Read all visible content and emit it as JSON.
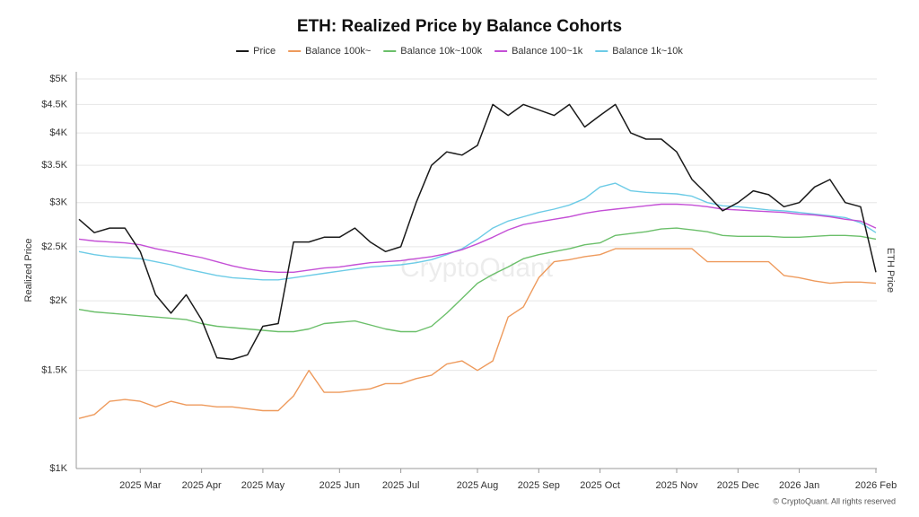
{
  "chart_data": {
    "type": "line",
    "title": "ETH: Realized Price by Balance Cohorts",
    "y_label": "Realized Price",
    "y2_label": "ETH Price",
    "watermark": "CryptoQuant",
    "credit": "© CryptoQuant. All rights reserved",
    "y_scale": "log",
    "grid": true,
    "legend": "top",
    "ylim": [
      1000,
      5150
    ],
    "yticks": [
      {
        "value": 1000,
        "label": "$1K"
      },
      {
        "value": 1500,
        "label": "$1.5K"
      },
      {
        "value": 2000,
        "label": "$2K"
      },
      {
        "value": 2500,
        "label": "$2.5K"
      },
      {
        "value": 3000,
        "label": "$3K"
      },
      {
        "value": 3500,
        "label": "$3.5K"
      },
      {
        "value": 4000,
        "label": "$4K"
      },
      {
        "value": 4500,
        "label": "$4.5K"
      },
      {
        "value": 5000,
        "label": "$5K"
      }
    ],
    "categories": [
      null,
      null,
      null,
      null,
      "2025 Mar",
      null,
      null,
      null,
      "2025 Apr",
      null,
      null,
      null,
      "2025 May",
      null,
      null,
      null,
      null,
      "2025 Jun",
      null,
      null,
      null,
      "2025 Jul",
      null,
      null,
      null,
      null,
      "2025 Aug",
      null,
      null,
      null,
      "2025 Sep",
      null,
      null,
      null,
      "2025 Oct",
      null,
      null,
      null,
      null,
      "2025 Nov",
      null,
      null,
      null,
      "2025 Dec",
      null,
      null,
      null,
      "2026 Jan",
      null,
      null,
      null,
      null,
      "2026 Feb"
    ],
    "series": [
      {
        "name": "Price",
        "color": "#1a1a1a",
        "values": [
          2800,
          2650,
          2700,
          2700,
          2450,
          2050,
          1900,
          2050,
          1850,
          1580,
          1570,
          1600,
          1800,
          1820,
          2550,
          2550,
          2600,
          2600,
          2700,
          2550,
          2450,
          2500,
          3000,
          3500,
          3700,
          3650,
          3800,
          4500,
          4300,
          4500,
          4400,
          4300,
          4500,
          4100,
          4300,
          4500,
          4000,
          3900,
          3900,
          3700,
          3300,
          3100,
          2900,
          3000,
          3150,
          3100,
          2950,
          3000,
          3200,
          3300,
          3000,
          2950,
          2250
        ]
      },
      {
        "name": "Balance 100k~",
        "color": "#ee9a5c",
        "values": [
          1230,
          1250,
          1320,
          1330,
          1320,
          1290,
          1320,
          1300,
          1300,
          1290,
          1290,
          1280,
          1270,
          1270,
          1350,
          1500,
          1370,
          1370,
          1380,
          1390,
          1420,
          1420,
          1450,
          1470,
          1540,
          1560,
          1500,
          1560,
          1870,
          1950,
          2200,
          2350,
          2370,
          2400,
          2420,
          2480,
          2480,
          2480,
          2480,
          2480,
          2480,
          2350,
          2350,
          2350,
          2350,
          2350,
          2220,
          2200,
          2170,
          2150,
          2160,
          2160,
          2150
        ]
      },
      {
        "name": "Balance 10k~100k",
        "color": "#6bbf6a",
        "values": [
          1930,
          1910,
          1900,
          1890,
          1880,
          1870,
          1860,
          1850,
          1820,
          1800,
          1790,
          1780,
          1770,
          1760,
          1760,
          1780,
          1820,
          1830,
          1840,
          1810,
          1780,
          1760,
          1760,
          1800,
          1900,
          2020,
          2150,
          2230,
          2300,
          2380,
          2420,
          2450,
          2480,
          2520,
          2540,
          2620,
          2640,
          2660,
          2690,
          2700,
          2680,
          2660,
          2620,
          2610,
          2610,
          2610,
          2600,
          2600,
          2610,
          2620,
          2620,
          2610,
          2580
        ]
      },
      {
        "name": "Balance 100~1k",
        "color": "#c44fd6",
        "values": [
          2580,
          2560,
          2550,
          2540,
          2520,
          2480,
          2450,
          2420,
          2390,
          2350,
          2310,
          2280,
          2260,
          2250,
          2250,
          2270,
          2290,
          2300,
          2320,
          2340,
          2350,
          2360,
          2380,
          2400,
          2430,
          2470,
          2530,
          2600,
          2680,
          2740,
          2770,
          2800,
          2830,
          2870,
          2900,
          2920,
          2940,
          2960,
          2980,
          2980,
          2970,
          2950,
          2920,
          2910,
          2900,
          2890,
          2880,
          2860,
          2850,
          2830,
          2800,
          2780,
          2700
        ]
      },
      {
        "name": "Balance 1k~10k",
        "color": "#6ccbe6",
        "values": [
          2450,
          2420,
          2400,
          2390,
          2380,
          2350,
          2320,
          2280,
          2250,
          2220,
          2200,
          2190,
          2180,
          2180,
          2200,
          2220,
          2240,
          2260,
          2280,
          2300,
          2310,
          2320,
          2340,
          2370,
          2420,
          2480,
          2580,
          2700,
          2780,
          2830,
          2880,
          2920,
          2970,
          3050,
          3200,
          3250,
          3150,
          3130,
          3120,
          3110,
          3080,
          3000,
          2960,
          2950,
          2930,
          2910,
          2900,
          2880,
          2860,
          2840,
          2820,
          2760,
          2650
        ]
      }
    ]
  }
}
